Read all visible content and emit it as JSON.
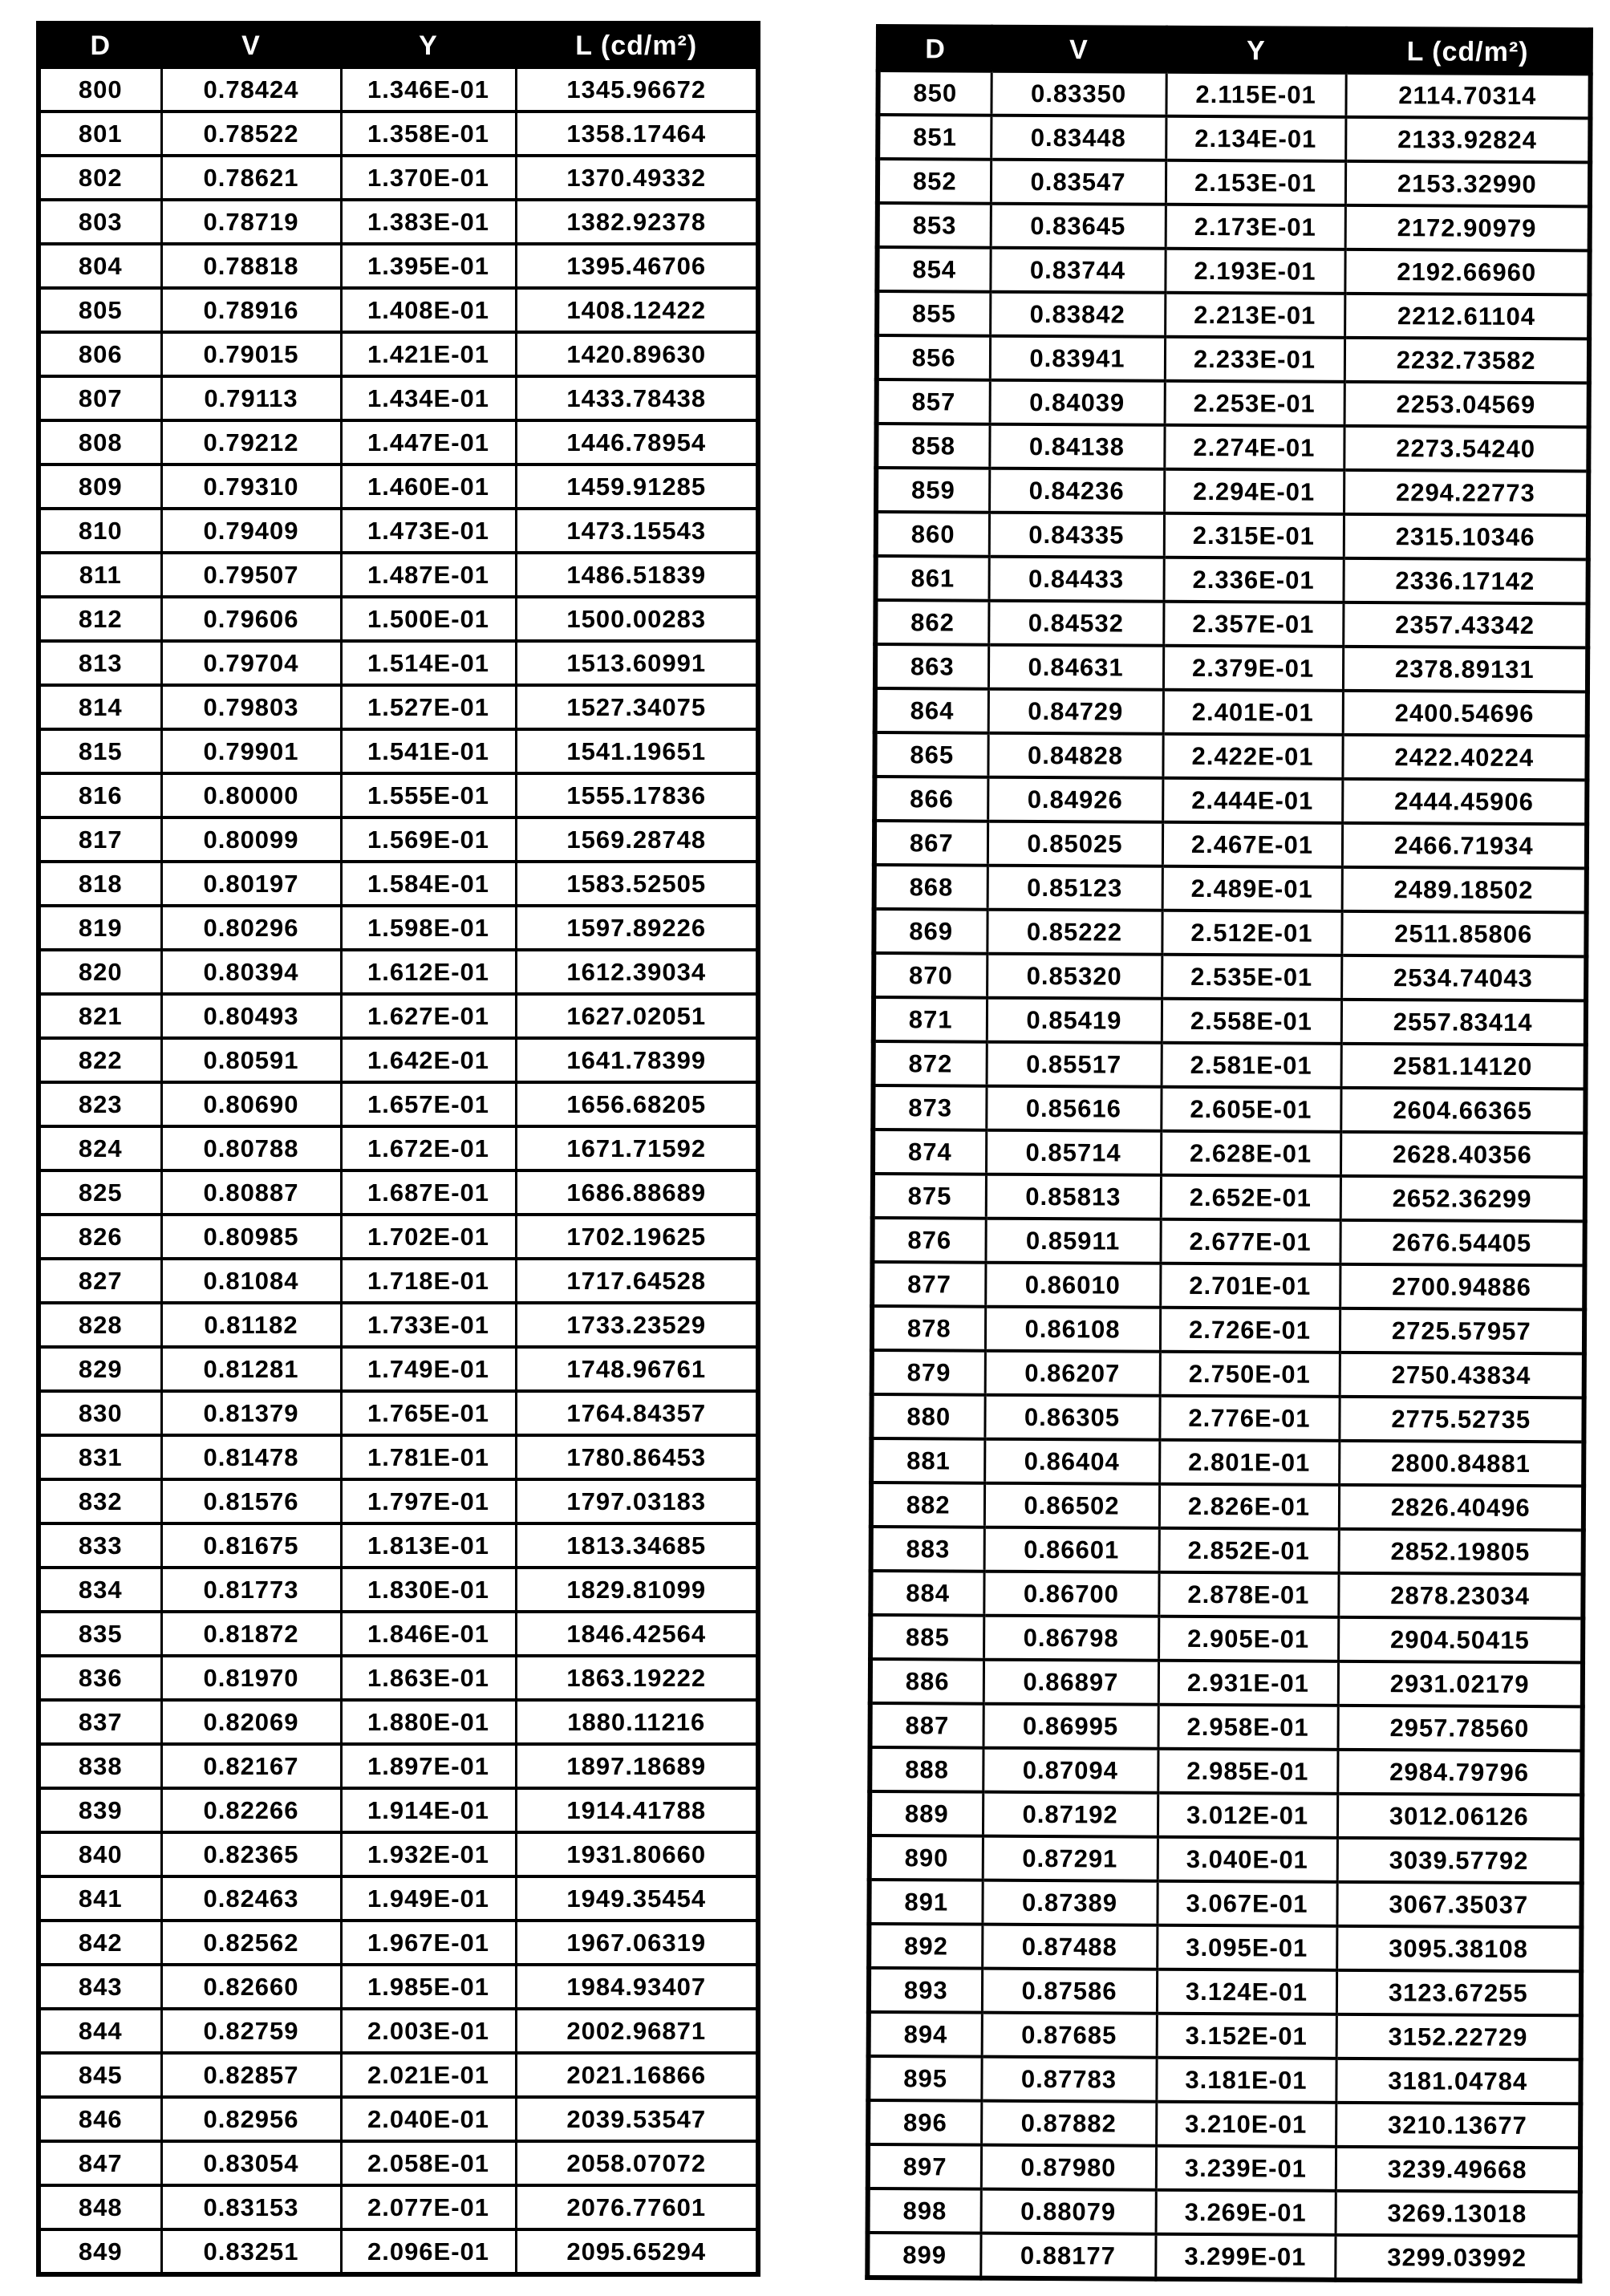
{
  "colors": {
    "page_bg": "#ffffff",
    "header_bg": "#000000",
    "header_text": "#ffffff",
    "cell_text": "#000000",
    "border": "#000000"
  },
  "tables": [
    {
      "id": "left",
      "columns": [
        "D",
        "V",
        "Y",
        "L (cd/m²)"
      ],
      "rows": [
        [
          "800",
          "0.78424",
          "1.346E-01",
          "1345.96672"
        ],
        [
          "801",
          "0.78522",
          "1.358E-01",
          "1358.17464"
        ],
        [
          "802",
          "0.78621",
          "1.370E-01",
          "1370.49332"
        ],
        [
          "803",
          "0.78719",
          "1.383E-01",
          "1382.92378"
        ],
        [
          "804",
          "0.78818",
          "1.395E-01",
          "1395.46706"
        ],
        [
          "805",
          "0.78916",
          "1.408E-01",
          "1408.12422"
        ],
        [
          "806",
          "0.79015",
          "1.421E-01",
          "1420.89630"
        ],
        [
          "807",
          "0.79113",
          "1.434E-01",
          "1433.78438"
        ],
        [
          "808",
          "0.79212",
          "1.447E-01",
          "1446.78954"
        ],
        [
          "809",
          "0.79310",
          "1.460E-01",
          "1459.91285"
        ],
        [
          "810",
          "0.79409",
          "1.473E-01",
          "1473.15543"
        ],
        [
          "811",
          "0.79507",
          "1.487E-01",
          "1486.51839"
        ],
        [
          "812",
          "0.79606",
          "1.500E-01",
          "1500.00283"
        ],
        [
          "813",
          "0.79704",
          "1.514E-01",
          "1513.60991"
        ],
        [
          "814",
          "0.79803",
          "1.527E-01",
          "1527.34075"
        ],
        [
          "815",
          "0.79901",
          "1.541E-01",
          "1541.19651"
        ],
        [
          "816",
          "0.80000",
          "1.555E-01",
          "1555.17836"
        ],
        [
          "817",
          "0.80099",
          "1.569E-01",
          "1569.28748"
        ],
        [
          "818",
          "0.80197",
          "1.584E-01",
          "1583.52505"
        ],
        [
          "819",
          "0.80296",
          "1.598E-01",
          "1597.89226"
        ],
        [
          "820",
          "0.80394",
          "1.612E-01",
          "1612.39034"
        ],
        [
          "821",
          "0.80493",
          "1.627E-01",
          "1627.02051"
        ],
        [
          "822",
          "0.80591",
          "1.642E-01",
          "1641.78399"
        ],
        [
          "823",
          "0.80690",
          "1.657E-01",
          "1656.68205"
        ],
        [
          "824",
          "0.80788",
          "1.672E-01",
          "1671.71592"
        ],
        [
          "825",
          "0.80887",
          "1.687E-01",
          "1686.88689"
        ],
        [
          "826",
          "0.80985",
          "1.702E-01",
          "1702.19625"
        ],
        [
          "827",
          "0.81084",
          "1.718E-01",
          "1717.64528"
        ],
        [
          "828",
          "0.81182",
          "1.733E-01",
          "1733.23529"
        ],
        [
          "829",
          "0.81281",
          "1.749E-01",
          "1748.96761"
        ],
        [
          "830",
          "0.81379",
          "1.765E-01",
          "1764.84357"
        ],
        [
          "831",
          "0.81478",
          "1.781E-01",
          "1780.86453"
        ],
        [
          "832",
          "0.81576",
          "1.797E-01",
          "1797.03183"
        ],
        [
          "833",
          "0.81675",
          "1.813E-01",
          "1813.34685"
        ],
        [
          "834",
          "0.81773",
          "1.830E-01",
          "1829.81099"
        ],
        [
          "835",
          "0.81872",
          "1.846E-01",
          "1846.42564"
        ],
        [
          "836",
          "0.81970",
          "1.863E-01",
          "1863.19222"
        ],
        [
          "837",
          "0.82069",
          "1.880E-01",
          "1880.11216"
        ],
        [
          "838",
          "0.82167",
          "1.897E-01",
          "1897.18689"
        ],
        [
          "839",
          "0.82266",
          "1.914E-01",
          "1914.41788"
        ],
        [
          "840",
          "0.82365",
          "1.932E-01",
          "1931.80660"
        ],
        [
          "841",
          "0.82463",
          "1.949E-01",
          "1949.35454"
        ],
        [
          "842",
          "0.82562",
          "1.967E-01",
          "1967.06319"
        ],
        [
          "843",
          "0.82660",
          "1.985E-01",
          "1984.93407"
        ],
        [
          "844",
          "0.82759",
          "2.003E-01",
          "2002.96871"
        ],
        [
          "845",
          "0.82857",
          "2.021E-01",
          "2021.16866"
        ],
        [
          "846",
          "0.82956",
          "2.040E-01",
          "2039.53547"
        ],
        [
          "847",
          "0.83054",
          "2.058E-01",
          "2058.07072"
        ],
        [
          "848",
          "0.83153",
          "2.077E-01",
          "2076.77601"
        ],
        [
          "849",
          "0.83251",
          "2.096E-01",
          "2095.65294"
        ]
      ]
    },
    {
      "id": "right",
      "columns": [
        "D",
        "V",
        "Y",
        "L (cd/m²)"
      ],
      "rows": [
        [
          "850",
          "0.83350",
          "2.115E-01",
          "2114.70314"
        ],
        [
          "851",
          "0.83448",
          "2.134E-01",
          "2133.92824"
        ],
        [
          "852",
          "0.83547",
          "2.153E-01",
          "2153.32990"
        ],
        [
          "853",
          "0.83645",
          "2.173E-01",
          "2172.90979"
        ],
        [
          "854",
          "0.83744",
          "2.193E-01",
          "2192.66960"
        ],
        [
          "855",
          "0.83842",
          "2.213E-01",
          "2212.61104"
        ],
        [
          "856",
          "0.83941",
          "2.233E-01",
          "2232.73582"
        ],
        [
          "857",
          "0.84039",
          "2.253E-01",
          "2253.04569"
        ],
        [
          "858",
          "0.84138",
          "2.274E-01",
          "2273.54240"
        ],
        [
          "859",
          "0.84236",
          "2.294E-01",
          "2294.22773"
        ],
        [
          "860",
          "0.84335",
          "2.315E-01",
          "2315.10346"
        ],
        [
          "861",
          "0.84433",
          "2.336E-01",
          "2336.17142"
        ],
        [
          "862",
          "0.84532",
          "2.357E-01",
          "2357.43342"
        ],
        [
          "863",
          "0.84631",
          "2.379E-01",
          "2378.89131"
        ],
        [
          "864",
          "0.84729",
          "2.401E-01",
          "2400.54696"
        ],
        [
          "865",
          "0.84828",
          "2.422E-01",
          "2422.40224"
        ],
        [
          "866",
          "0.84926",
          "2.444E-01",
          "2444.45906"
        ],
        [
          "867",
          "0.85025",
          "2.467E-01",
          "2466.71934"
        ],
        [
          "868",
          "0.85123",
          "2.489E-01",
          "2489.18502"
        ],
        [
          "869",
          "0.85222",
          "2.512E-01",
          "2511.85806"
        ],
        [
          "870",
          "0.85320",
          "2.535E-01",
          "2534.74043"
        ],
        [
          "871",
          "0.85419",
          "2.558E-01",
          "2557.83414"
        ],
        [
          "872",
          "0.85517",
          "2.581E-01",
          "2581.14120"
        ],
        [
          "873",
          "0.85616",
          "2.605E-01",
          "2604.66365"
        ],
        [
          "874",
          "0.85714",
          "2.628E-01",
          "2628.40356"
        ],
        [
          "875",
          "0.85813",
          "2.652E-01",
          "2652.36299"
        ],
        [
          "876",
          "0.85911",
          "2.677E-01",
          "2676.54405"
        ],
        [
          "877",
          "0.86010",
          "2.701E-01",
          "2700.94886"
        ],
        [
          "878",
          "0.86108",
          "2.726E-01",
          "2725.57957"
        ],
        [
          "879",
          "0.86207",
          "2.750E-01",
          "2750.43834"
        ],
        [
          "880",
          "0.86305",
          "2.776E-01",
          "2775.52735"
        ],
        [
          "881",
          "0.86404",
          "2.801E-01",
          "2800.84881"
        ],
        [
          "882",
          "0.86502",
          "2.826E-01",
          "2826.40496"
        ],
        [
          "883",
          "0.86601",
          "2.852E-01",
          "2852.19805"
        ],
        [
          "884",
          "0.86700",
          "2.878E-01",
          "2878.23034"
        ],
        [
          "885",
          "0.86798",
          "2.905E-01",
          "2904.50415"
        ],
        [
          "886",
          "0.86897",
          "2.931E-01",
          "2931.02179"
        ],
        [
          "887",
          "0.86995",
          "2.958E-01",
          "2957.78560"
        ],
        [
          "888",
          "0.87094",
          "2.985E-01",
          "2984.79796"
        ],
        [
          "889",
          "0.87192",
          "3.012E-01",
          "3012.06126"
        ],
        [
          "890",
          "0.87291",
          "3.040E-01",
          "3039.57792"
        ],
        [
          "891",
          "0.87389",
          "3.067E-01",
          "3067.35037"
        ],
        [
          "892",
          "0.87488",
          "3.095E-01",
          "3095.38108"
        ],
        [
          "893",
          "0.87586",
          "3.124E-01",
          "3123.67255"
        ],
        [
          "894",
          "0.87685",
          "3.152E-01",
          "3152.22729"
        ],
        [
          "895",
          "0.87783",
          "3.181E-01",
          "3181.04784"
        ],
        [
          "896",
          "0.87882",
          "3.210E-01",
          "3210.13677"
        ],
        [
          "897",
          "0.87980",
          "3.239E-01",
          "3239.49668"
        ],
        [
          "898",
          "0.88079",
          "3.269E-01",
          "3269.13018"
        ],
        [
          "899",
          "0.88177",
          "3.299E-01",
          "3299.03992"
        ]
      ]
    }
  ]
}
